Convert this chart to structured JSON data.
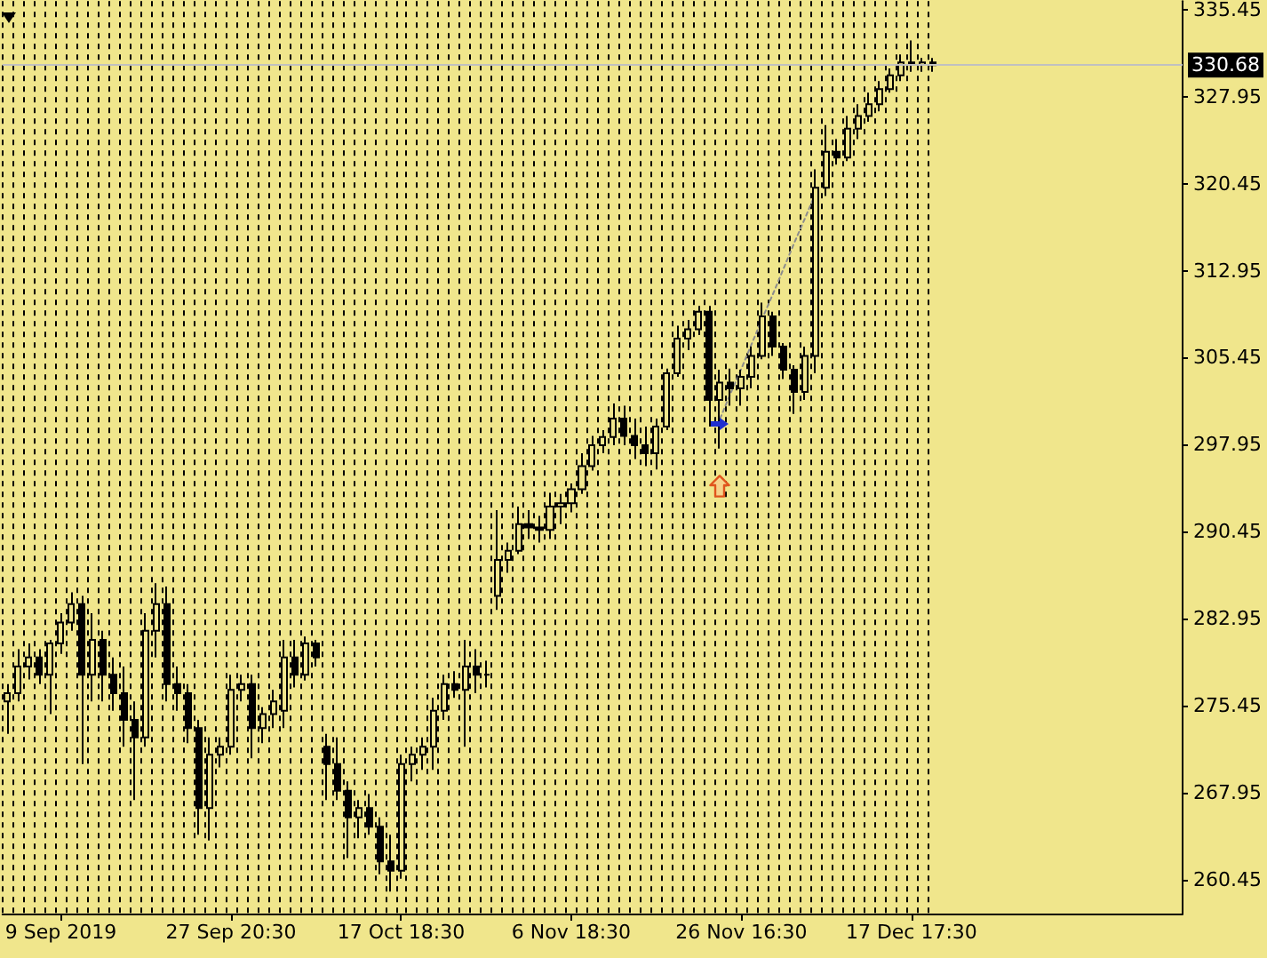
{
  "chart_data": {
    "type": "candlestick",
    "color": "#000000",
    "categories": [
      null,
      null,
      null,
      null,
      null,
      "9 Sep 2019",
      null,
      null,
      null,
      null,
      null,
      null,
      null,
      null,
      null,
      null,
      null,
      null,
      null,
      null,
      null,
      "27 Sep 20:30",
      null,
      null,
      null,
      null,
      null,
      null,
      null,
      null,
      null,
      null,
      null,
      null,
      null,
      null,
      null,
      "17 Oct 18:30",
      null,
      null,
      null,
      null,
      null,
      null,
      null,
      null,
      null,
      null,
      null,
      null,
      null,
      null,
      null,
      "6 Nov 18:30",
      null,
      null,
      null,
      null,
      null,
      null,
      null,
      null,
      null,
      null,
      null,
      null,
      null,
      null,
      null,
      "26 Nov 16:30",
      null,
      null,
      null,
      null,
      null,
      null,
      null,
      null,
      null,
      null,
      null,
      null,
      null,
      null,
      null,
      "17 Dec 17:30",
      null,
      null,
      null,
      null,
      null,
      null,
      null,
      null,
      null,
      null,
      null,
      null,
      null,
      null,
      null,
      null,
      null,
      null,
      null,
      null,
      null,
      null,
      null,
      null,
      null
    ],
    "ohlc": [
      [
        275.8,
        277.3,
        273.0,
        276.5
      ],
      [
        276.5,
        280.3,
        275.8,
        278.8
      ],
      [
        278.8,
        280.8,
        277.7,
        279.6
      ],
      [
        279.6,
        280.3,
        277.3,
        278.1
      ],
      [
        278.1,
        281.1,
        274.7,
        280.8
      ],
      [
        280.8,
        283.4,
        279.9,
        282.6
      ],
      [
        282.6,
        285.2,
        281.9,
        284.2
      ],
      [
        284.2,
        284.9,
        270.4,
        278.1
      ],
      [
        278.1,
        283.4,
        275.8,
        281.1
      ],
      [
        281.1,
        281.9,
        275.8,
        278.1
      ],
      [
        278.1,
        279.6,
        275.0,
        276.5
      ],
      [
        276.5,
        278.8,
        271.9,
        274.2
      ],
      [
        274.2,
        275.8,
        267.3,
        272.7
      ],
      [
        272.7,
        283.4,
        271.9,
        281.9
      ],
      [
        281.9,
        286.0,
        279.6,
        284.2
      ],
      [
        284.2,
        285.7,
        275.8,
        277.3
      ],
      [
        277.3,
        278.8,
        275.0,
        276.5
      ],
      [
        276.5,
        277.3,
        272.2,
        273.5
      ],
      [
        273.5,
        274.2,
        264.3,
        266.6
      ],
      [
        266.6,
        272.7,
        263.8,
        271.2
      ],
      [
        271.2,
        272.7,
        270.1,
        271.9
      ],
      [
        271.9,
        278.1,
        271.2,
        276.8
      ],
      [
        276.8,
        278.1,
        275.8,
        277.3
      ],
      [
        277.3,
        278.1,
        270.9,
        273.5
      ],
      [
        273.5,
        275.3,
        272.2,
        274.7
      ],
      [
        274.7,
        276.8,
        273.5,
        275.8
      ],
      [
        275.0,
        281.1,
        273.5,
        279.6
      ],
      [
        279.6,
        281.1,
        277.0,
        278.1
      ],
      [
        278.1,
        281.4,
        277.6,
        280.8
      ],
      [
        280.8,
        281.1,
        278.8,
        279.6
      ],
      [
        271.9,
        273.0,
        267.3,
        270.4
      ],
      [
        270.4,
        272.7,
        267.3,
        268.1
      ],
      [
        268.1,
        268.9,
        262.3,
        265.8
      ],
      [
        265.8,
        267.3,
        264.0,
        266.6
      ],
      [
        266.6,
        267.8,
        264.3,
        265.0
      ],
      [
        265.0,
        265.8,
        260.9,
        262.0
      ],
      [
        262.0,
        264.3,
        259.4,
        261.2
      ],
      [
        261.2,
        271.2,
        260.5,
        270.4
      ],
      [
        270.4,
        271.9,
        268.9,
        271.2
      ],
      [
        271.2,
        272.7,
        269.9,
        271.9
      ],
      [
        271.9,
        276.1,
        269.9,
        275.0
      ],
      [
        275.0,
        278.1,
        274.2,
        277.3
      ],
      [
        277.3,
        278.4,
        276.1,
        276.8
      ],
      [
        276.8,
        281.1,
        271.9,
        278.8
      ],
      [
        278.8,
        280.3,
        276.5,
        278.1
      ],
      [
        278.1,
        279.3,
        277.0,
        278.1
      ],
      [
        284.9,
        292.3,
        283.7,
        288.0
      ],
      [
        288.0,
        289.5,
        286.9,
        288.8
      ],
      [
        288.8,
        292.6,
        288.5,
        291.1
      ],
      [
        291.1,
        292.3,
        289.8,
        290.8
      ],
      [
        290.8,
        291.8,
        289.5,
        290.6
      ],
      [
        290.6,
        293.8,
        289.8,
        292.6
      ],
      [
        292.6,
        293.7,
        291.1,
        292.9
      ],
      [
        292.9,
        294.6,
        292.1,
        294.1
      ],
      [
        294.1,
        297.2,
        293.7,
        296.1
      ],
      [
        296.1,
        298.7,
        295.7,
        297.9
      ],
      [
        297.9,
        299.2,
        297.2,
        298.6
      ],
      [
        298.6,
        301.5,
        297.9,
        300.2
      ],
      [
        300.2,
        301.3,
        297.9,
        298.7
      ],
      [
        298.7,
        300.2,
        296.7,
        297.9
      ],
      [
        297.9,
        299.5,
        296.1,
        297.2
      ],
      [
        297.2,
        300.2,
        295.8,
        299.5
      ],
      [
        299.5,
        304.5,
        299.2,
        304.1
      ],
      [
        304.1,
        308.2,
        303.8,
        307.1
      ],
      [
        307.1,
        308.7,
        306.1,
        307.9
      ],
      [
        307.9,
        309.9,
        307.4,
        309.4
      ],
      [
        309.4,
        309.9,
        299.5,
        301.8
      ],
      [
        301.8,
        304.4,
        297.6,
        303.3
      ],
      [
        303.3,
        304.5,
        301.3,
        302.8
      ],
      [
        302.8,
        304.4,
        301.3,
        303.8
      ],
      [
        303.8,
        306.4,
        302.8,
        305.6
      ],
      [
        305.6,
        310.2,
        305.3,
        309.0
      ],
      [
        309.0,
        309.4,
        305.6,
        306.4
      ],
      [
        306.4,
        306.7,
        303.6,
        304.4
      ],
      [
        304.4,
        304.8,
        300.6,
        302.5
      ],
      [
        302.5,
        306.4,
        301.8,
        305.6
      ],
      [
        305.6,
        321.7,
        304.1,
        320.1
      ],
      [
        320.1,
        325.5,
        319.4,
        323.2
      ],
      [
        323.2,
        324.3,
        322.1,
        322.7
      ],
      [
        322.7,
        326.3,
        322.4,
        325.2
      ],
      [
        325.2,
        327.3,
        324.3,
        326.3
      ],
      [
        326.3,
        328.3,
        325.8,
        327.3
      ],
      [
        327.3,
        329.3,
        326.7,
        328.6
      ],
      [
        328.6,
        330.4,
        328.3,
        329.8
      ],
      [
        329.8,
        331.6,
        329.3,
        330.9
      ],
      [
        330.9,
        332.8,
        330.1,
        330.7
      ],
      [
        330.7,
        331.3,
        330.1,
        330.9
      ],
      [
        330.9,
        331.3,
        330.1,
        330.68
      ],
      null,
      null,
      null,
      null,
      null,
      null,
      null,
      null,
      null,
      null,
      null,
      null,
      null,
      null,
      null,
      null,
      null,
      null,
      null,
      null,
      null,
      null,
      null
    ],
    "ylim": [
      257.5,
      336.2
    ],
    "yticks": [
      260.45,
      267.95,
      275.45,
      282.95,
      290.45,
      297.95,
      305.45,
      312.95,
      320.45,
      327.95,
      335.45
    ],
    "grid": "x",
    "ref_lines": [
      {
        "axis": "y",
        "value": 330.68,
        "label": "330.68",
        "color": "#c0c0c0"
      }
    ],
    "series": [
      {
        "type": "line",
        "color": "#8c8c8c",
        "line_style": "dotted",
        "marker": "none",
        "values": [
          null,
          null,
          null,
          null,
          null,
          null,
          null,
          null,
          null,
          null,
          null,
          null,
          null,
          null,
          null,
          null,
          null,
          null,
          null,
          null,
          null,
          null,
          null,
          null,
          null,
          null,
          null,
          null,
          null,
          null,
          null,
          null,
          null,
          null,
          null,
          null,
          null,
          null,
          null,
          null,
          null,
          null,
          null,
          null,
          null,
          null,
          null,
          null,
          null,
          null,
          null,
          null,
          null,
          null,
          null,
          null,
          null,
          null,
          null,
          null,
          null,
          null,
          null,
          null,
          null,
          null,
          null,
          300.2,
          302.4,
          304.5,
          306.7,
          308.9,
          311.0,
          313.2,
          315.4,
          317.5,
          319.7,
          null,
          null,
          null,
          null,
          null,
          null,
          null,
          null,
          null,
          null,
          null,
          null,
          null,
          null,
          null,
          null,
          null,
          null,
          null,
          null,
          null,
          null,
          null,
          null,
          null,
          null,
          null,
          null,
          null,
          null,
          null,
          null,
          null,
          null
        ]
      }
    ]
  }
}
